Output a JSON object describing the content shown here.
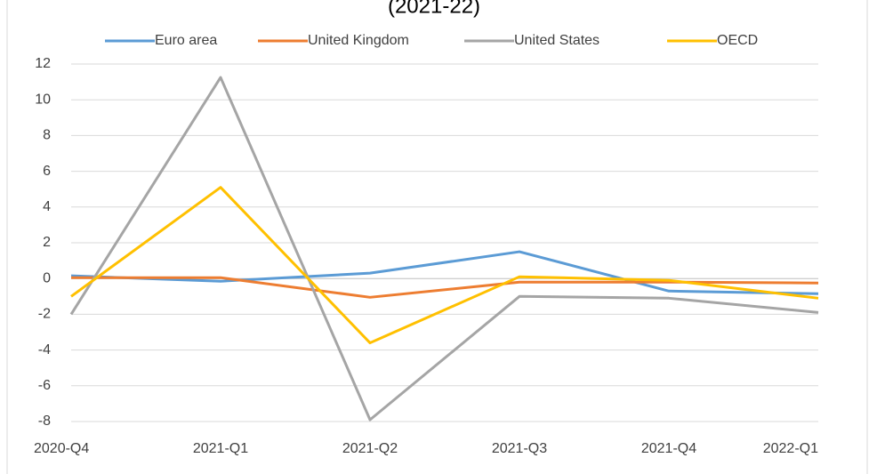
{
  "chart_data": {
    "type": "line",
    "title": "(2021-22)",
    "categories": [
      "2020-Q4",
      "2021-Q1",
      "2021-Q2",
      "2021-Q3",
      "2021-Q4",
      "2022-Q1"
    ],
    "series": [
      {
        "name": "Euro area",
        "color": "#5b9bd5",
        "values": [
          0.15,
          -0.15,
          0.3,
          1.5,
          -0.7,
          -0.85
        ]
      },
      {
        "name": "United Kingdom",
        "color": "#ed7d31",
        "values": [
          0.05,
          0.05,
          -1.05,
          -0.2,
          -0.2,
          -0.25
        ]
      },
      {
        "name": "United States",
        "color": "#a5a5a5",
        "values": [
          -2.0,
          11.25,
          -7.9,
          -1.0,
          -1.1,
          -1.9
        ]
      },
      {
        "name": "OECD",
        "color": "#ffc000",
        "values": [
          -1.0,
          5.1,
          -3.6,
          0.1,
          -0.1,
          -1.1
        ]
      }
    ],
    "ylim": [
      -8,
      12
    ],
    "yticks": [
      -8,
      -6,
      -4,
      -2,
      0,
      2,
      4,
      6,
      8,
      10,
      12
    ],
    "grid": true,
    "legend": "top"
  }
}
